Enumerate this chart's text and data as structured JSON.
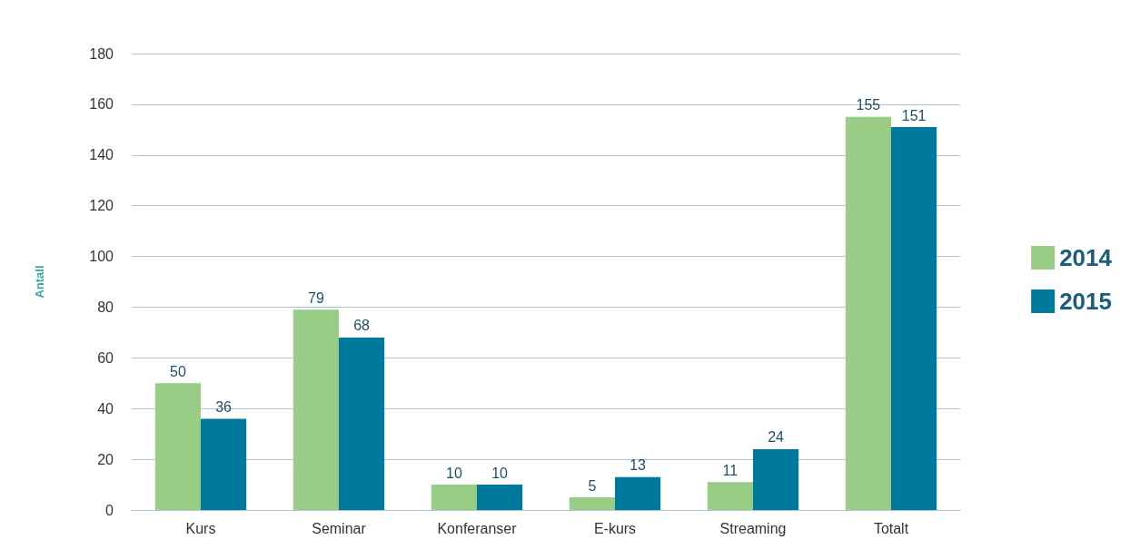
{
  "chart_data": {
    "type": "bar",
    "ylabel": "Antall",
    "categories": [
      "Kurs",
      "Seminar",
      "Konferanser",
      "E-kurs",
      "Streaming",
      "Totalt"
    ],
    "series": [
      {
        "name": "2014",
        "color": "#99cc85",
        "values": [
          50,
          79,
          10,
          5,
          11,
          155
        ]
      },
      {
        "name": "2015",
        "color": "#007a9c",
        "values": [
          36,
          68,
          10,
          13,
          24,
          151
        ]
      }
    ],
    "ylim": [
      0,
      180
    ],
    "yticks": [
      0,
      20,
      40,
      60,
      80,
      100,
      120,
      140,
      160,
      180
    ],
    "grid": "y",
    "legend": "right",
    "data_labels": true
  }
}
